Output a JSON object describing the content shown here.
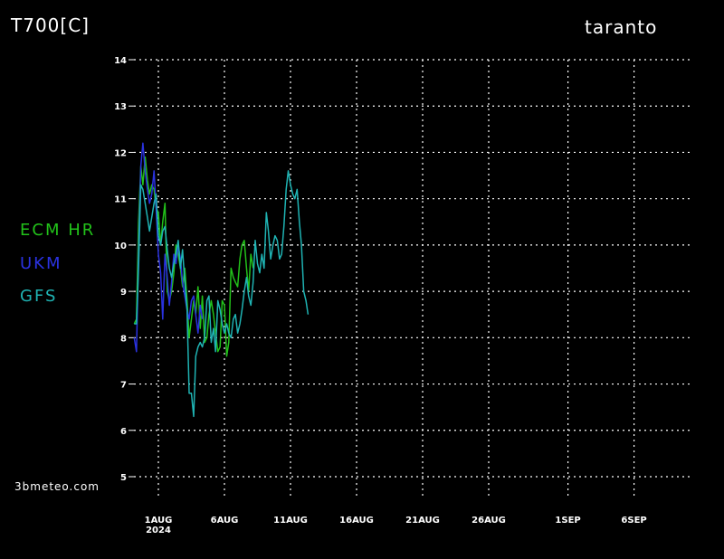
{
  "header": {
    "variable": "T700[C]",
    "location": "taranto"
  },
  "footer": {
    "credit": "3bmeteo.com"
  },
  "legend": [
    {
      "label": "ECM HR",
      "color": "#22c21a"
    },
    {
      "label": "UKM",
      "color": "#2a32e0"
    },
    {
      "label": "GFS",
      "color": "#1fb3b3"
    }
  ],
  "chart_data": {
    "type": "line",
    "ylim": [
      5,
      14
    ],
    "yticks": [
      5,
      6,
      7,
      8,
      9,
      10,
      11,
      12,
      13,
      14
    ],
    "xlim": [
      -1.2,
      41
    ],
    "xticks": [
      {
        "x": 0,
        "label": "1AUG",
        "sublabel": "2024"
      },
      {
        "x": 5,
        "label": "6AUG"
      },
      {
        "x": 10,
        "label": "11AUG"
      },
      {
        "x": 15,
        "label": "16AUG"
      },
      {
        "x": 20,
        "label": "21AUG"
      },
      {
        "x": 25,
        "label": "26AUG"
      },
      {
        "x": 31,
        "label": "1SEP"
      },
      {
        "x": 36,
        "label": "6SEP"
      }
    ],
    "grid": true,
    "series": [
      {
        "name": "ECM HR",
        "color": "#22c21a",
        "points": [
          [
            -1.83,
            8.3
          ],
          [
            -1.66,
            8.4
          ],
          [
            -1.5,
            10.5
          ],
          [
            -1.33,
            11.7
          ],
          [
            -1.17,
            11.3
          ],
          [
            -1.0,
            11.9
          ],
          [
            -0.83,
            11.4
          ],
          [
            -0.67,
            11.1
          ],
          [
            -0.5,
            11.3
          ],
          [
            -0.33,
            11.2
          ],
          [
            -0.17,
            10.8
          ],
          [
            0.0,
            10.7
          ],
          [
            0.17,
            10.0
          ],
          [
            0.33,
            10.5
          ],
          [
            0.5,
            10.9
          ],
          [
            0.67,
            9.0
          ],
          [
            0.83,
            8.8
          ],
          [
            1.0,
            9.0
          ],
          [
            1.17,
            9.4
          ],
          [
            1.33,
            10.0
          ],
          [
            1.5,
            9.8
          ],
          [
            1.67,
            9.5
          ],
          [
            1.83,
            9.1
          ],
          [
            2.0,
            9.5
          ],
          [
            2.17,
            8.8
          ],
          [
            2.33,
            8.0
          ],
          [
            2.5,
            8.4
          ],
          [
            2.67,
            8.8
          ],
          [
            2.83,
            8.5
          ],
          [
            3.0,
            9.1
          ],
          [
            3.17,
            8.2
          ],
          [
            3.33,
            8.9
          ],
          [
            3.5,
            7.9
          ],
          [
            3.67,
            8.0
          ],
          [
            3.83,
            8.5
          ],
          [
            4.0,
            8.8
          ],
          [
            4.17,
            8.5
          ],
          [
            4.33,
            8.1
          ],
          [
            4.5,
            7.7
          ],
          [
            4.67,
            7.8
          ],
          [
            4.83,
            8.8
          ],
          [
            5.0,
            8.7
          ],
          [
            5.17,
            7.6
          ],
          [
            5.33,
            7.9
          ],
          [
            5.5,
            9.5
          ],
          [
            5.67,
            9.3
          ],
          [
            5.83,
            9.2
          ],
          [
            6.0,
            9.1
          ],
          [
            6.17,
            9.7
          ],
          [
            6.33,
            10.0
          ],
          [
            6.5,
            10.1
          ],
          [
            6.67,
            9.5
          ],
          [
            6.83,
            9.0
          ],
          [
            7.0,
            9.8
          ],
          [
            7.17,
            9.5
          ]
        ]
      },
      {
        "name": "UKM",
        "color": "#2a32e0",
        "points": [
          [
            -1.83,
            8.0
          ],
          [
            -1.66,
            7.7
          ],
          [
            -1.5,
            9.8
          ],
          [
            -1.33,
            11.7
          ],
          [
            -1.17,
            12.2
          ],
          [
            -1.0,
            11.6
          ],
          [
            -0.83,
            11.2
          ],
          [
            -0.67,
            10.9
          ],
          [
            -0.5,
            11.1
          ],
          [
            -0.33,
            11.6
          ],
          [
            -0.17,
            10.8
          ],
          [
            0.0,
            9.8
          ],
          [
            0.17,
            9.4
          ],
          [
            0.33,
            8.4
          ],
          [
            0.5,
            9.8
          ],
          [
            0.67,
            9.3
          ],
          [
            0.83,
            8.7
          ],
          [
            1.0,
            9.2
          ],
          [
            1.17,
            9.8
          ],
          [
            1.33,
            9.6
          ],
          [
            1.5,
            10.0
          ],
          [
            1.67,
            9.7
          ],
          [
            1.83,
            9.2
          ],
          [
            2.0,
            8.9
          ],
          [
            2.17,
            8.6
          ],
          [
            2.33,
            8.4
          ],
          [
            2.5,
            8.8
          ],
          [
            2.67,
            8.9
          ],
          [
            2.83,
            8.5
          ],
          [
            3.0,
            8.1
          ],
          [
            3.17,
            8.7
          ],
          [
            3.33,
            8.4
          ]
        ]
      },
      {
        "name": "GFS",
        "color": "#1fb3b3",
        "points": [
          [
            -1.83,
            8.3
          ],
          [
            -1.66,
            8.3
          ],
          [
            -1.5,
            9.5
          ],
          [
            -1.33,
            11.3
          ],
          [
            -1.17,
            11.2
          ],
          [
            -1.0,
            10.9
          ],
          [
            -0.83,
            10.6
          ],
          [
            -0.67,
            10.3
          ],
          [
            -0.5,
            10.6
          ],
          [
            -0.33,
            10.9
          ],
          [
            -0.17,
            11.1
          ],
          [
            0.0,
            10.2
          ],
          [
            0.17,
            10.0
          ],
          [
            0.33,
            10.3
          ],
          [
            0.5,
            10.4
          ],
          [
            0.67,
            9.9
          ],
          [
            0.83,
            9.5
          ],
          [
            1.0,
            9.3
          ],
          [
            1.17,
            9.6
          ],
          [
            1.33,
            9.8
          ],
          [
            1.5,
            10.1
          ],
          [
            1.67,
            9.5
          ],
          [
            1.83,
            9.9
          ],
          [
            2.0,
            9.2
          ],
          [
            2.17,
            8.6
          ],
          [
            2.33,
            6.8
          ],
          [
            2.5,
            6.8
          ],
          [
            2.67,
            6.3
          ],
          [
            2.83,
            7.6
          ],
          [
            3.0,
            7.8
          ],
          [
            3.17,
            7.9
          ],
          [
            3.33,
            7.8
          ],
          [
            3.5,
            8.0
          ],
          [
            3.67,
            8.8
          ],
          [
            3.83,
            8.9
          ],
          [
            4.0,
            7.9
          ],
          [
            4.17,
            8.2
          ],
          [
            4.33,
            7.7
          ],
          [
            4.5,
            8.8
          ],
          [
            4.67,
            8.6
          ],
          [
            4.83,
            8.3
          ],
          [
            5.0,
            8.1
          ],
          [
            5.17,
            8.3
          ],
          [
            5.33,
            8.1
          ],
          [
            5.5,
            8.0
          ],
          [
            5.67,
            8.4
          ],
          [
            5.83,
            8.5
          ],
          [
            6.0,
            8.1
          ],
          [
            6.17,
            8.3
          ],
          [
            6.33,
            8.6
          ],
          [
            6.5,
            9.0
          ],
          [
            6.67,
            9.3
          ],
          [
            6.83,
            8.9
          ],
          [
            7.0,
            8.7
          ],
          [
            7.17,
            9.2
          ],
          [
            7.33,
            10.1
          ],
          [
            7.5,
            9.6
          ],
          [
            7.67,
            9.4
          ],
          [
            7.83,
            9.8
          ],
          [
            8.0,
            9.5
          ],
          [
            8.17,
            10.7
          ],
          [
            8.33,
            10.3
          ],
          [
            8.5,
            9.7
          ],
          [
            8.67,
            10.0
          ],
          [
            8.83,
            10.2
          ],
          [
            9.0,
            10.1
          ],
          [
            9.17,
            9.7
          ],
          [
            9.33,
            9.8
          ],
          [
            9.5,
            10.4
          ],
          [
            9.67,
            11.2
          ],
          [
            9.83,
            11.6
          ],
          [
            10.0,
            11.3
          ],
          [
            10.17,
            11.1
          ],
          [
            10.33,
            11.0
          ],
          [
            10.5,
            11.2
          ],
          [
            10.67,
            10.5
          ],
          [
            10.83,
            10.0
          ],
          [
            11.0,
            9.0
          ],
          [
            11.17,
            8.8
          ],
          [
            11.33,
            8.5
          ]
        ]
      }
    ]
  }
}
